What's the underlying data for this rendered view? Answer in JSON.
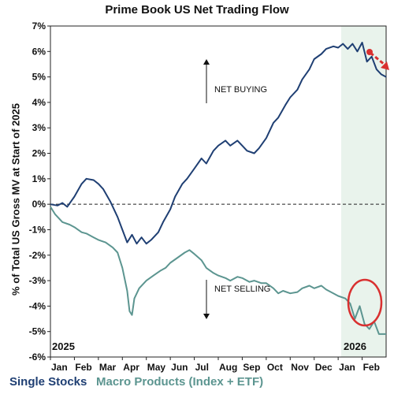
{
  "chart_data": {
    "type": "line",
    "title": "Prime Book US Net Trading Flow",
    "ylabel": "% of Total US Gross MV at Start of 2025",
    "xlabel": "",
    "ylim": [
      -6,
      7
    ],
    "yticks": [
      "7%",
      "6%",
      "5%",
      "4%",
      "3%",
      "2%",
      "1%",
      "0%",
      "-1%",
      "-2%",
      "-3%",
      "-4%",
      "-5%",
      "-6%"
    ],
    "xticks": [
      "Jan",
      "Feb",
      "Mar",
      "Apr",
      "May",
      "Jun",
      "Jul",
      "Aug",
      "Sep",
      "Oct",
      "Nov",
      "Dec",
      "Jan",
      "Feb"
    ],
    "year_labels": [
      "2025",
      "2026"
    ],
    "annotations": [
      "NET BUYING",
      "NET SELLING"
    ],
    "reference_line": 0,
    "shaded_region": "2026",
    "grid": false,
    "series": [
      {
        "name": "Single Stocks",
        "color": "#1f3f73",
        "points": [
          [
            0.0,
            0.0
          ],
          [
            0.3,
            -0.05
          ],
          [
            0.5,
            0.05
          ],
          [
            0.7,
            -0.1
          ],
          [
            1.0,
            0.3
          ],
          [
            1.3,
            0.8
          ],
          [
            1.5,
            1.0
          ],
          [
            1.8,
            0.95
          ],
          [
            2.0,
            0.8
          ],
          [
            2.2,
            0.6
          ],
          [
            2.5,
            0.1
          ],
          [
            2.8,
            -0.5
          ],
          [
            3.0,
            -1.0
          ],
          [
            3.2,
            -1.5
          ],
          [
            3.4,
            -1.2
          ],
          [
            3.6,
            -1.55
          ],
          [
            3.8,
            -1.3
          ],
          [
            4.0,
            -1.55
          ],
          [
            4.2,
            -1.4
          ],
          [
            4.5,
            -1.1
          ],
          [
            4.7,
            -0.7
          ],
          [
            5.0,
            -0.2
          ],
          [
            5.2,
            0.3
          ],
          [
            5.5,
            0.8
          ],
          [
            5.7,
            1.0
          ],
          [
            6.0,
            1.4
          ],
          [
            6.3,
            1.8
          ],
          [
            6.5,
            1.6
          ],
          [
            6.8,
            2.1
          ],
          [
            7.0,
            2.3
          ],
          [
            7.3,
            2.5
          ],
          [
            7.5,
            2.3
          ],
          [
            7.8,
            2.5
          ],
          [
            8.0,
            2.3
          ],
          [
            8.2,
            2.1
          ],
          [
            8.5,
            2.0
          ],
          [
            8.7,
            2.2
          ],
          [
            9.0,
            2.6
          ],
          [
            9.3,
            3.2
          ],
          [
            9.5,
            3.4
          ],
          [
            9.8,
            3.9
          ],
          [
            10.0,
            4.2
          ],
          [
            10.3,
            4.5
          ],
          [
            10.5,
            4.9
          ],
          [
            10.8,
            5.3
          ],
          [
            11.0,
            5.7
          ],
          [
            11.3,
            5.9
          ],
          [
            11.5,
            6.1
          ],
          [
            11.8,
            6.2
          ],
          [
            12.0,
            6.15
          ],
          [
            12.2,
            6.3
          ],
          [
            12.4,
            6.1
          ],
          [
            12.6,
            6.3
          ],
          [
            12.8,
            6.0
          ],
          [
            13.0,
            6.35
          ],
          [
            13.2,
            5.6
          ],
          [
            13.4,
            5.8
          ],
          [
            13.6,
            5.3
          ],
          [
            13.8,
            5.1
          ],
          [
            14.0,
            5.0
          ]
        ]
      },
      {
        "name": "Macro Products (Index + ETF)",
        "color": "#5c9590",
        "points": [
          [
            0.0,
            -0.1
          ],
          [
            0.2,
            -0.4
          ],
          [
            0.5,
            -0.7
          ],
          [
            0.8,
            -0.8
          ],
          [
            1.0,
            -0.9
          ],
          [
            1.3,
            -1.1
          ],
          [
            1.5,
            -1.15
          ],
          [
            1.8,
            -1.3
          ],
          [
            2.0,
            -1.4
          ],
          [
            2.3,
            -1.5
          ],
          [
            2.6,
            -1.7
          ],
          [
            2.8,
            -1.9
          ],
          [
            3.0,
            -2.5
          ],
          [
            3.2,
            -3.4
          ],
          [
            3.3,
            -4.2
          ],
          [
            3.4,
            -4.35
          ],
          [
            3.5,
            -3.7
          ],
          [
            3.7,
            -3.3
          ],
          [
            4.0,
            -3.0
          ],
          [
            4.3,
            -2.8
          ],
          [
            4.6,
            -2.6
          ],
          [
            4.8,
            -2.5
          ],
          [
            5.0,
            -2.3
          ],
          [
            5.3,
            -2.1
          ],
          [
            5.6,
            -1.9
          ],
          [
            5.8,
            -1.8
          ],
          [
            6.0,
            -1.95
          ],
          [
            6.3,
            -2.2
          ],
          [
            6.5,
            -2.5
          ],
          [
            6.8,
            -2.7
          ],
          [
            7.0,
            -2.8
          ],
          [
            7.3,
            -2.9
          ],
          [
            7.5,
            -3.0
          ],
          [
            7.8,
            -2.85
          ],
          [
            8.0,
            -2.9
          ],
          [
            8.3,
            -3.05
          ],
          [
            8.5,
            -3.0
          ],
          [
            8.8,
            -3.1
          ],
          [
            9.0,
            -3.1
          ],
          [
            9.3,
            -3.3
          ],
          [
            9.5,
            -3.5
          ],
          [
            9.7,
            -3.4
          ],
          [
            10.0,
            -3.5
          ],
          [
            10.3,
            -3.45
          ],
          [
            10.5,
            -3.3
          ],
          [
            10.8,
            -3.2
          ],
          [
            11.0,
            -3.3
          ],
          [
            11.3,
            -3.2
          ],
          [
            11.5,
            -3.35
          ],
          [
            11.8,
            -3.5
          ],
          [
            12.0,
            -3.6
          ],
          [
            12.3,
            -3.7
          ],
          [
            12.5,
            -3.9
          ],
          [
            12.7,
            -4.5
          ],
          [
            12.9,
            -4.0
          ],
          [
            13.1,
            -4.7
          ],
          [
            13.3,
            -4.9
          ],
          [
            13.5,
            -4.6
          ],
          [
            13.7,
            -5.1
          ],
          [
            14.0,
            -5.1
          ]
        ]
      }
    ]
  }
}
